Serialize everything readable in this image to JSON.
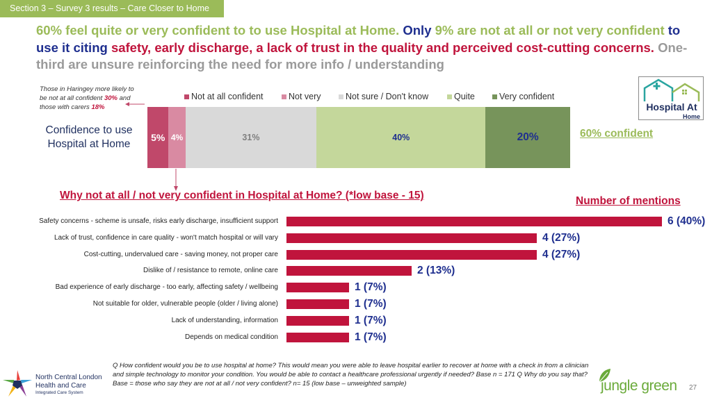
{
  "section_tab": "Section 3 – Survey 3 results – Care Closer to Home",
  "headline": {
    "part1": "60% feel quite or very confident to to use Hospital at Home. ",
    "part2": "Only ",
    "part3": "9% are not at all or not very confident ",
    "part4": "to use it citing ",
    "part5": "safety, early discharge, a lack of trust in the quality and perceived cost-cutting concerns.",
    "part6": " One-third are unsure reinforcing the need for more info / understanding"
  },
  "side_note": {
    "text1": "Those in Haringey more likely to be not at all confident ",
    "value1": "30%",
    "text2": " and those with carers ",
    "value2": "18%"
  },
  "confidence_label": "Confidence to use Hospital at Home",
  "confident_total": "60% confident",
  "logo": {
    "line1": "Hospital At",
    "line2": "Home"
  },
  "why_title": "Why not at all / not very confident in Hospital at Home? (*low base - 15)",
  "mentions_title": "Number of mentions",
  "colors": {
    "not_at_all": "#c0486a",
    "not_very": "#d98aa2",
    "not_sure": "#d9d9d9",
    "quite": "#c4d79b",
    "very": "#77945b",
    "hbar": "#c0143c",
    "accent_green": "#9bbb59",
    "navy": "#1f2f8f"
  },
  "chart_data": [
    {
      "type": "bar",
      "orientation": "horizontal-stacked-100",
      "categories": [
        "Confidence to use Hospital at Home"
      ],
      "series": [
        {
          "name": "Not at all confident",
          "values": [
            5
          ],
          "label": "5%",
          "color": "#c0486a"
        },
        {
          "name": "Not very",
          "values": [
            4
          ],
          "label": "4%",
          "color": "#d98aa2"
        },
        {
          "name": "Not sure / Don't know",
          "values": [
            31
          ],
          "label": "31%",
          "color": "#d9d9d9"
        },
        {
          "name": "Quite",
          "values": [
            40
          ],
          "label": "40%",
          "color": "#c4d79b"
        },
        {
          "name": "Very confident",
          "values": [
            20
          ],
          "label": "20%",
          "color": "#77945b"
        }
      ],
      "legend": "top"
    },
    {
      "type": "bar",
      "orientation": "horizontal",
      "title": "Why not at all / not very confident in Hospital at Home? (*low base - 15)",
      "categories": [
        "Safety concerns - scheme is unsafe, risks early discharge, insufficient support",
        "Lack of trust, confidence in care quality - won't match hospital  or will vary",
        "Cost-cutting, undervalued care - saving money, not proper care",
        "Dislike of / resistance to remote, online care",
        "Bad experience of early discharge -  too early, affecting safety / wellbeing",
        "Not suitable for older, vulnerable people (older / living alone)",
        "Lack of understanding, information",
        "Depends on medical condition"
      ],
      "values": [
        6,
        4,
        4,
        2,
        1,
        1,
        1,
        1
      ],
      "data_labels": [
        "6 (40%)",
        "4 (27%)",
        "4 (27%)",
        "2 (13%)",
        "1 (7%)",
        "1 (7%)",
        "1 (7%)",
        "1 (7%)"
      ],
      "xlim": [
        0,
        6
      ]
    }
  ],
  "footnote": "Q How confident would you be to use hospital at home? This would mean you were able to leave hospital earlier to recover at home with a check in from a clinician and simple technology to monitor your condition. You would be able to contact a healthcare professional urgently if needed? Base n = 171  Q Why do you say that? Base = those who say they are not at all / not very confident? n= 15 (low base – unweighted sample)",
  "nclhc_logo": {
    "line1": "North Central London",
    "line2": "Health and Care",
    "line3": "Integrated Care System"
  },
  "jungle_green_logo": "jungle green",
  "page_number": "27"
}
